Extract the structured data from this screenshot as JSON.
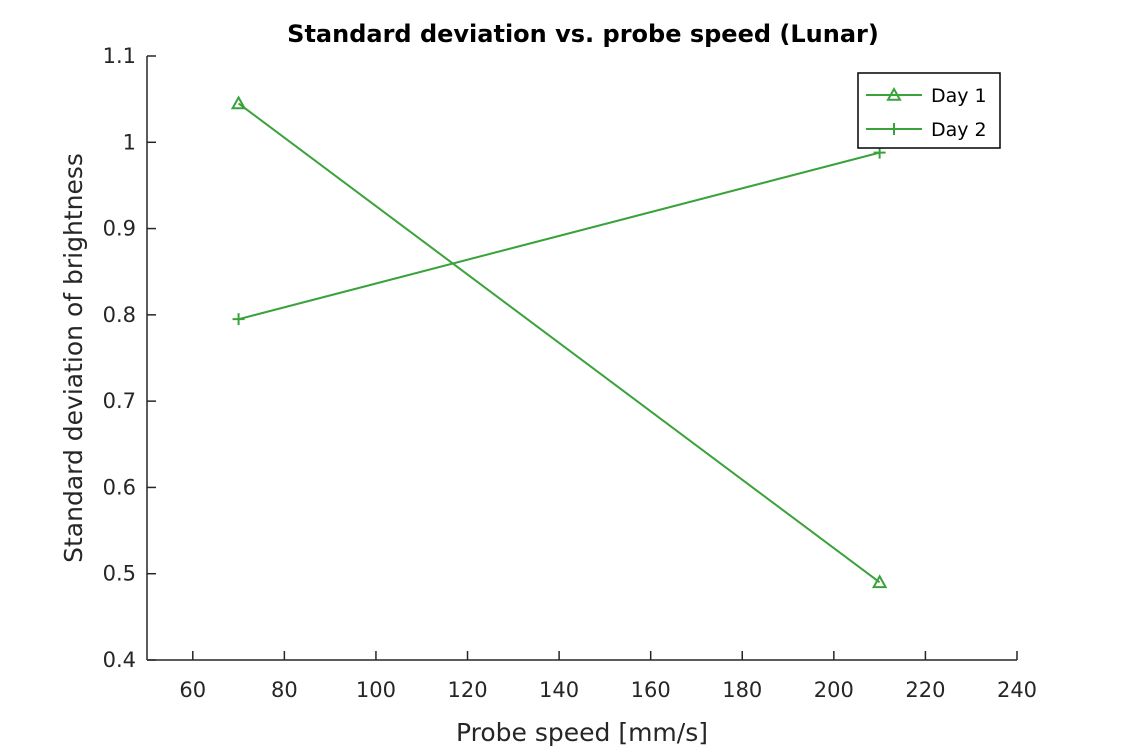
{
  "chart_data": {
    "type": "line",
    "title": "Standard deviation vs. probe speed (Lunar)",
    "xlabel": "Probe speed [mm/s]",
    "ylabel": "Standard deviation of brightness",
    "xlim": [
      50,
      240
    ],
    "ylim": [
      0.4,
      1.1
    ],
    "xticks": [
      60,
      80,
      100,
      120,
      140,
      160,
      180,
      200,
      220,
      240
    ],
    "yticks": [
      0.4,
      0.5,
      0.6,
      0.7,
      0.8,
      0.9,
      1,
      1.1
    ],
    "xtick_labels": [
      "60",
      "80",
      "100",
      "120",
      "140",
      "160",
      "180",
      "200",
      "220",
      "240"
    ],
    "ytick_labels": [
      "0.4",
      "0.5",
      "0.6",
      "0.7",
      "0.8",
      "0.9",
      "1",
      "1.1"
    ],
    "grid": false,
    "legend_position": "top-right",
    "series": [
      {
        "name": "Day 1",
        "marker": "triangle",
        "color": "#3aa23a",
        "x": [
          70,
          210
        ],
        "y": [
          1.045,
          0.49
        ]
      },
      {
        "name": "Day 2",
        "marker": "plus",
        "color": "#3aa23a",
        "x": [
          70,
          210
        ],
        "y": [
          0.795,
          0.988
        ]
      }
    ]
  }
}
